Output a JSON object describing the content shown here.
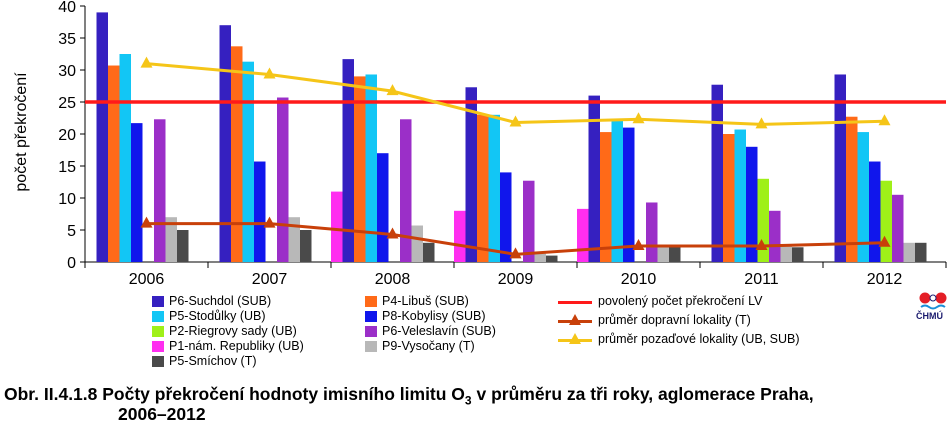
{
  "chart_data": {
    "type": "bar",
    "ylabel": "počet překročení",
    "xlabel": "",
    "ylim": [
      0,
      40
    ],
    "yticks": [
      0,
      5,
      10,
      15,
      20,
      25,
      30,
      35,
      40
    ],
    "categories": [
      "2006",
      "2007",
      "2008",
      "2009",
      "2010",
      "2011",
      "2012"
    ],
    "series": [
      {
        "name": "P6-Suchdol (SUB)",
        "color": "#3520c0",
        "values": [
          39,
          37,
          31.7,
          27.3,
          26,
          27.7,
          29.3
        ]
      },
      {
        "name": "P4-Libuš (SUB)",
        "color": "#ff6a18",
        "values": [
          30.7,
          33.7,
          29,
          23,
          20.3,
          20,
          22.7
        ]
      },
      {
        "name": "P5-Stodůlky (UB)",
        "color": "#12c6f5",
        "values": [
          32.5,
          31.3,
          29.3,
          23,
          22.3,
          20.7,
          20.3
        ]
      },
      {
        "name": "P8-Kobylisy (SUB)",
        "color": "#1016ec",
        "values": [
          21.7,
          15.7,
          17,
          14,
          21,
          18,
          15.7
        ]
      },
      {
        "name": "P2-Riegrovy sady (UB)",
        "color": "#9ff018",
        "values": [
          null,
          null,
          null,
          null,
          null,
          13,
          12.7
        ]
      },
      {
        "name": "P6-Veleslavín (SUB)",
        "color": "#9b2fc8",
        "values": [
          22.3,
          25.7,
          22.3,
          12.7,
          9.3,
          8,
          10.5
        ]
      },
      {
        "name": "P1-nám. Republiky (UB)",
        "color": "#ff2ef0",
        "values": [
          null,
          null,
          11,
          8,
          8.3,
          null,
          null
        ]
      },
      {
        "name": "P9-Vysočany (T)",
        "color": "#b8b8b8",
        "values": [
          7,
          7,
          5.7,
          1.3,
          2.3,
          2.7,
          3
        ]
      },
      {
        "name": "P5-Smíchov (T)",
        "color": "#4a4a4a",
        "values": [
          5,
          5,
          3,
          1,
          2.7,
          2.3,
          3
        ]
      }
    ],
    "bar_order": [
      "P1-nám. Republiky (UB)",
      "P6-Suchdol (SUB)",
      "P4-Libuš (SUB)",
      "P5-Stodůlky (UB)",
      "P8-Kobylisy (SUB)",
      "P2-Riegrovy sady (UB)",
      "P6-Veleslavín (SUB)",
      "P9-Vysočany (T)",
      "P5-Smíchov (T)"
    ],
    "lines": [
      {
        "name": "povolený počet překročení LV",
        "color": "#ff1a1a",
        "type": "constant",
        "value": 25
      },
      {
        "name": "průměr dopravní lokality (T)",
        "color": "#c8400a",
        "marker": "triangle",
        "values": [
          6,
          6,
          4.3,
          1.2,
          2.5,
          2.5,
          3
        ]
      },
      {
        "name": "průměr pozaďové lokality (UB, SUB)",
        "color": "#f5c518",
        "marker": "triangle",
        "values": [
          31,
          29.3,
          26.7,
          21.8,
          22.3,
          21.5,
          22
        ]
      }
    ],
    "legend_position": "bottom"
  },
  "legend": {
    "col1": [
      "P6-Suchdol (SUB)",
      "P5-Stodůlky (UB)",
      "P2-Riegrovy sady (UB)",
      "P1-nám. Republiky (UB)",
      "P5-Smíchov (T)"
    ],
    "col2": [
      "P4-Libuš (SUB)",
      "P8-Kobylisy (SUB)",
      "P6-Veleslavín (SUB)",
      "P9-Vysočany (T)"
    ],
    "col3": [
      "povolený počet překročení LV",
      "průměr dopravní lokality (T)",
      "průměr pozaďové lokality (UB, SUB)"
    ]
  },
  "logo_text": "ČHMÚ",
  "caption": {
    "prefix": "Obr. II.4.1.8  Počty překročení hodnoty imisního limitu O",
    "subscript": "3",
    "suffix": " v průměru za tři roky, aglomerace Praha,",
    "line2": "2006–2012"
  }
}
